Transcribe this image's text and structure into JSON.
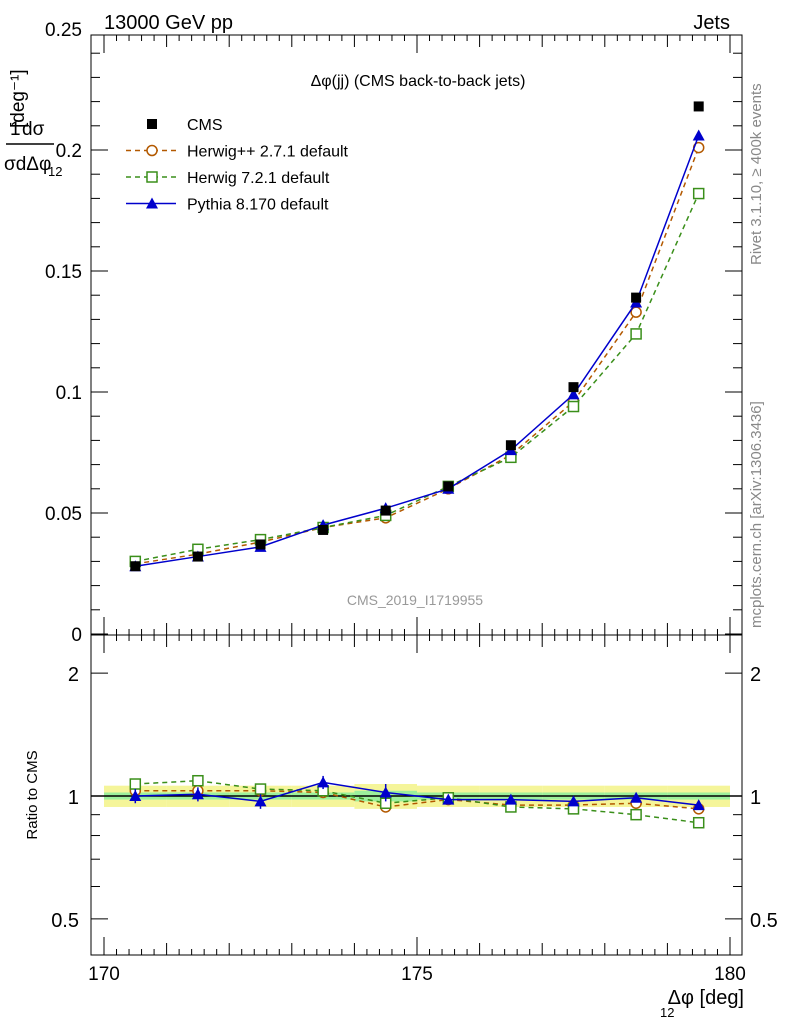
{
  "header": {
    "left": "13000 GeV pp",
    "right": "Jets"
  },
  "side": {
    "rivet": "Rivet 3.1.10, ≥ 400k events",
    "mcplots": "mcplots.cern.ch [arXiv:1306.3436]"
  },
  "chart_data": [
    {
      "type": "scatter",
      "title": "Δφ(jj) (CMS back-to-back jets)",
      "watermark": "CMS_2019_I1719955",
      "ylabel": "1/σ dσ/dΔφ12 [deg⁻¹]",
      "ylim": [
        0,
        0.5
      ],
      "xlim": [
        170,
        180
      ],
      "yticks": [
        "0",
        "0.05",
        "0.1",
        "0.15",
        "0.2",
        "0.25",
        "0.3",
        "0.35",
        "0.4",
        "0.45"
      ],
      "xticks": [
        "170",
        "175",
        "180"
      ],
      "legend_position": "top-left",
      "x": [
        170.5,
        171.5,
        172.5,
        173.5,
        174.5,
        175.5,
        176.5,
        177.5,
        178.5,
        179.5
      ],
      "series": [
        {
          "name": "CMS",
          "color": "#000000",
          "marker": "square-filled",
          "line": "none",
          "values": [
            0.028,
            0.032,
            0.037,
            0.043,
            0.051,
            0.061,
            0.078,
            0.102,
            0.139,
            0.218
          ]
        },
        {
          "name": "Herwig++ 2.7.1 default",
          "color": "#b35900",
          "marker": "circle-open",
          "line": "dashed",
          "values": [
            0.029,
            0.033,
            0.038,
            0.044,
            0.048,
            0.06,
            0.074,
            0.096,
            0.133,
            0.201
          ]
        },
        {
          "name": "Herwig 7.2.1 default",
          "color": "#3a8f1a",
          "marker": "square-open",
          "line": "dashed",
          "values": [
            0.03,
            0.035,
            0.039,
            0.044,
            0.049,
            0.061,
            0.073,
            0.094,
            0.124,
            0.182
          ]
        },
        {
          "name": "Pythia 8.170 default",
          "color": "#0000cc",
          "marker": "triangle-filled",
          "line": "solid",
          "values": [
            0.028,
            0.032,
            0.036,
            0.045,
            0.052,
            0.06,
            0.076,
            0.099,
            0.137,
            0.206
          ]
        }
      ]
    },
    {
      "type": "scatter",
      "ylabel": "Ratio to CMS",
      "xlabel": "Δφ12 [deg]",
      "ylim": [
        0.4,
        2.3
      ],
      "yscale": "log",
      "xlim": [
        170,
        180
      ],
      "yticks": [
        "0.5",
        "1",
        "2"
      ],
      "band_colors": {
        "outer": "#f5f59a",
        "inner": "#9cf09c",
        "line": "#000000"
      },
      "band_outer": [
        0.06,
        0.06,
        0.06,
        0.06,
        0.07,
        0.06,
        0.06,
        0.06,
        0.06,
        0.06
      ],
      "band_inner": [
        0.02,
        0.02,
        0.02,
        0.02,
        0.03,
        0.02,
        0.02,
        0.02,
        0.02,
        0.02
      ],
      "x": [
        170.5,
        171.5,
        172.5,
        173.5,
        174.5,
        175.5,
        176.5,
        177.5,
        178.5,
        179.5
      ],
      "series": [
        {
          "name": "Herwig++ 2.7.1 default",
          "color": "#b35900",
          "marker": "circle-open",
          "line": "dashed",
          "values": [
            1.03,
            1.03,
            1.03,
            1.02,
            0.94,
            0.98,
            0.95,
            0.95,
            0.96,
            0.93
          ]
        },
        {
          "name": "Herwig 7.2.1 default",
          "color": "#3a8f1a",
          "marker": "square-open",
          "line": "dashed",
          "values": [
            1.07,
            1.09,
            1.04,
            1.03,
            0.96,
            0.99,
            0.94,
            0.93,
            0.9,
            0.86
          ]
        },
        {
          "name": "Pythia 8.170 default",
          "color": "#0000cc",
          "marker": "triangle-filled",
          "line": "solid",
          "values": [
            1.0,
            1.01,
            0.97,
            1.08,
            1.02,
            0.98,
            0.98,
            0.97,
            0.99,
            0.95
          ],
          "errors": [
            0.04,
            0.04,
            0.04,
            0.04,
            0.05,
            0.02,
            0.02,
            0.02,
            0.02,
            0.01
          ]
        }
      ]
    }
  ]
}
